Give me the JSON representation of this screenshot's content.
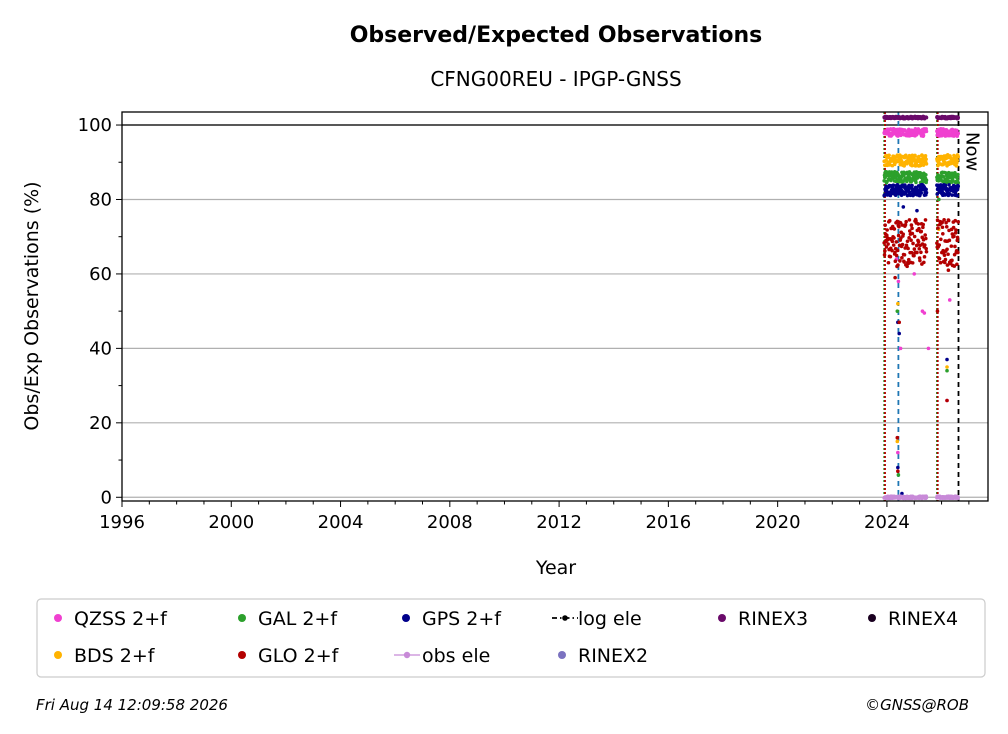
{
  "chart_data": {
    "type": "scatter",
    "title": "Observed/Expected Observations",
    "subtitle": "CFNG00REU - IPGP-GNSS",
    "xlabel": "Year",
    "ylabel": "Obs/Exp Observations (%)",
    "xlim": [
      1996,
      2027.7
    ],
    "ylim": [
      -1,
      103.5
    ],
    "xticks": [
      "1996",
      "2000",
      "2004",
      "2008",
      "2012",
      "2016",
      "2020",
      "2024"
    ],
    "xtick_values": [
      1996,
      2000,
      2004,
      2008,
      2012,
      2016,
      2020,
      2024
    ],
    "yticks": [
      "0",
      "20",
      "40",
      "60",
      "80",
      "100"
    ],
    "ytick_values": [
      0,
      20,
      40,
      60,
      80,
      100
    ],
    "grid": "horizontal",
    "reference_line_y": 100,
    "now_label": "Now",
    "now_x": 2026.62,
    "vertical_markers": [
      {
        "x": 2023.9,
        "color": "#2ca02c",
        "style": "dotted"
      },
      {
        "x": 2023.93,
        "color": "#b30000",
        "style": "dotted"
      },
      {
        "x": 2024.42,
        "color": "#1f77b4",
        "style": "dashed"
      },
      {
        "x": 2025.83,
        "color": "#2ca02c",
        "style": "dotted"
      },
      {
        "x": 2025.86,
        "color": "#b30000",
        "style": "dotted"
      },
      {
        "x": 2026.62,
        "color": "#000000",
        "style": "dashed"
      }
    ],
    "segments": [
      [
        2023.9,
        2025.45
      ],
      [
        2025.83,
        2026.62
      ]
    ],
    "series": [
      {
        "name": "QZSS 2+f",
        "color": "#f040d0",
        "typical": [
          97,
          99
        ],
        "outliers": [
          [
            2024.35,
            64
          ],
          [
            2024.42,
            58
          ],
          [
            2024.5,
            40
          ],
          [
            2025.3,
            50
          ],
          [
            2025.37,
            49.5
          ],
          [
            2025.52,
            40
          ],
          [
            2026.3,
            53
          ],
          [
            2024.4,
            12
          ],
          [
            2026.2,
            26
          ],
          [
            2025.0,
            60
          ]
        ]
      },
      {
        "name": "BDS 2+f",
        "color": "#ffb300",
        "typical": [
          89,
          92
        ],
        "outliers": [
          [
            2024.4,
            52
          ],
          [
            2024.38,
            15
          ],
          [
            2026.2,
            35
          ],
          [
            2025.9,
            72
          ]
        ]
      },
      {
        "name": "GAL 2+f",
        "color": "#2ca02c",
        "typical": [
          84.5,
          87.5
        ],
        "outliers": [
          [
            2024.38,
            50
          ],
          [
            2024.42,
            6
          ],
          [
            2026.2,
            34
          ],
          [
            2025.9,
            80
          ]
        ]
      },
      {
        "name": "GPS 2+f",
        "color": "#00008b",
        "typical": [
          81,
          84
        ],
        "outliers": [
          [
            2024.4,
            47
          ],
          [
            2024.45,
            44
          ],
          [
            2024.4,
            8
          ],
          [
            2024.55,
            1
          ],
          [
            2026.2,
            37
          ],
          [
            2025.1,
            77
          ],
          [
            2024.6,
            78
          ]
        ]
      },
      {
        "name": "GLO 2+f",
        "color": "#b30000",
        "typical": [
          62,
          75
        ],
        "outliers": [
          [
            2024.45,
            47
          ],
          [
            2024.38,
            16
          ],
          [
            2024.4,
            7
          ],
          [
            2025.85,
            50
          ],
          [
            2026.2,
            26
          ],
          [
            2026.25,
            61
          ],
          [
            2024.3,
            59
          ]
        ]
      },
      {
        "name": "obs ele",
        "color": "#c88ad8",
        "values_y": 0
      },
      {
        "name": "log ele",
        "color": "#000000"
      },
      {
        "name": "RINEX2",
        "color": "#7b72c0"
      },
      {
        "name": "RINEX3",
        "color": "#6a0a6a",
        "values_y": 102
      },
      {
        "name": "RINEX4",
        "color": "#1a0020"
      }
    ]
  },
  "legend": {
    "items": [
      {
        "label": "QZSS 2+f",
        "marker": "dot",
        "color": "#f040d0"
      },
      {
        "label": "GAL 2+f",
        "marker": "dot",
        "color": "#2ca02c"
      },
      {
        "label": "GPS 2+f",
        "marker": "dot",
        "color": "#00008b"
      },
      {
        "label": "log ele",
        "marker": "dashdot",
        "color": "#000000"
      },
      {
        "label": "RINEX3",
        "marker": "dot",
        "color": "#6a0a6a"
      },
      {
        "label": "RINEX4",
        "marker": "dot",
        "color": "#1a0020"
      },
      {
        "label": "BDS 2+f",
        "marker": "dot",
        "color": "#ffb300"
      },
      {
        "label": "GLO 2+f",
        "marker": "dot",
        "color": "#b30000"
      },
      {
        "label": "obs ele",
        "marker": "line",
        "color": "#c88ad8"
      },
      {
        "label": "RINEX2",
        "marker": "dot",
        "color": "#7b72c0"
      }
    ]
  },
  "footer": {
    "timestamp": "Fri Aug 14 12:09:58 2026",
    "credit": "©GNSS@ROB"
  }
}
